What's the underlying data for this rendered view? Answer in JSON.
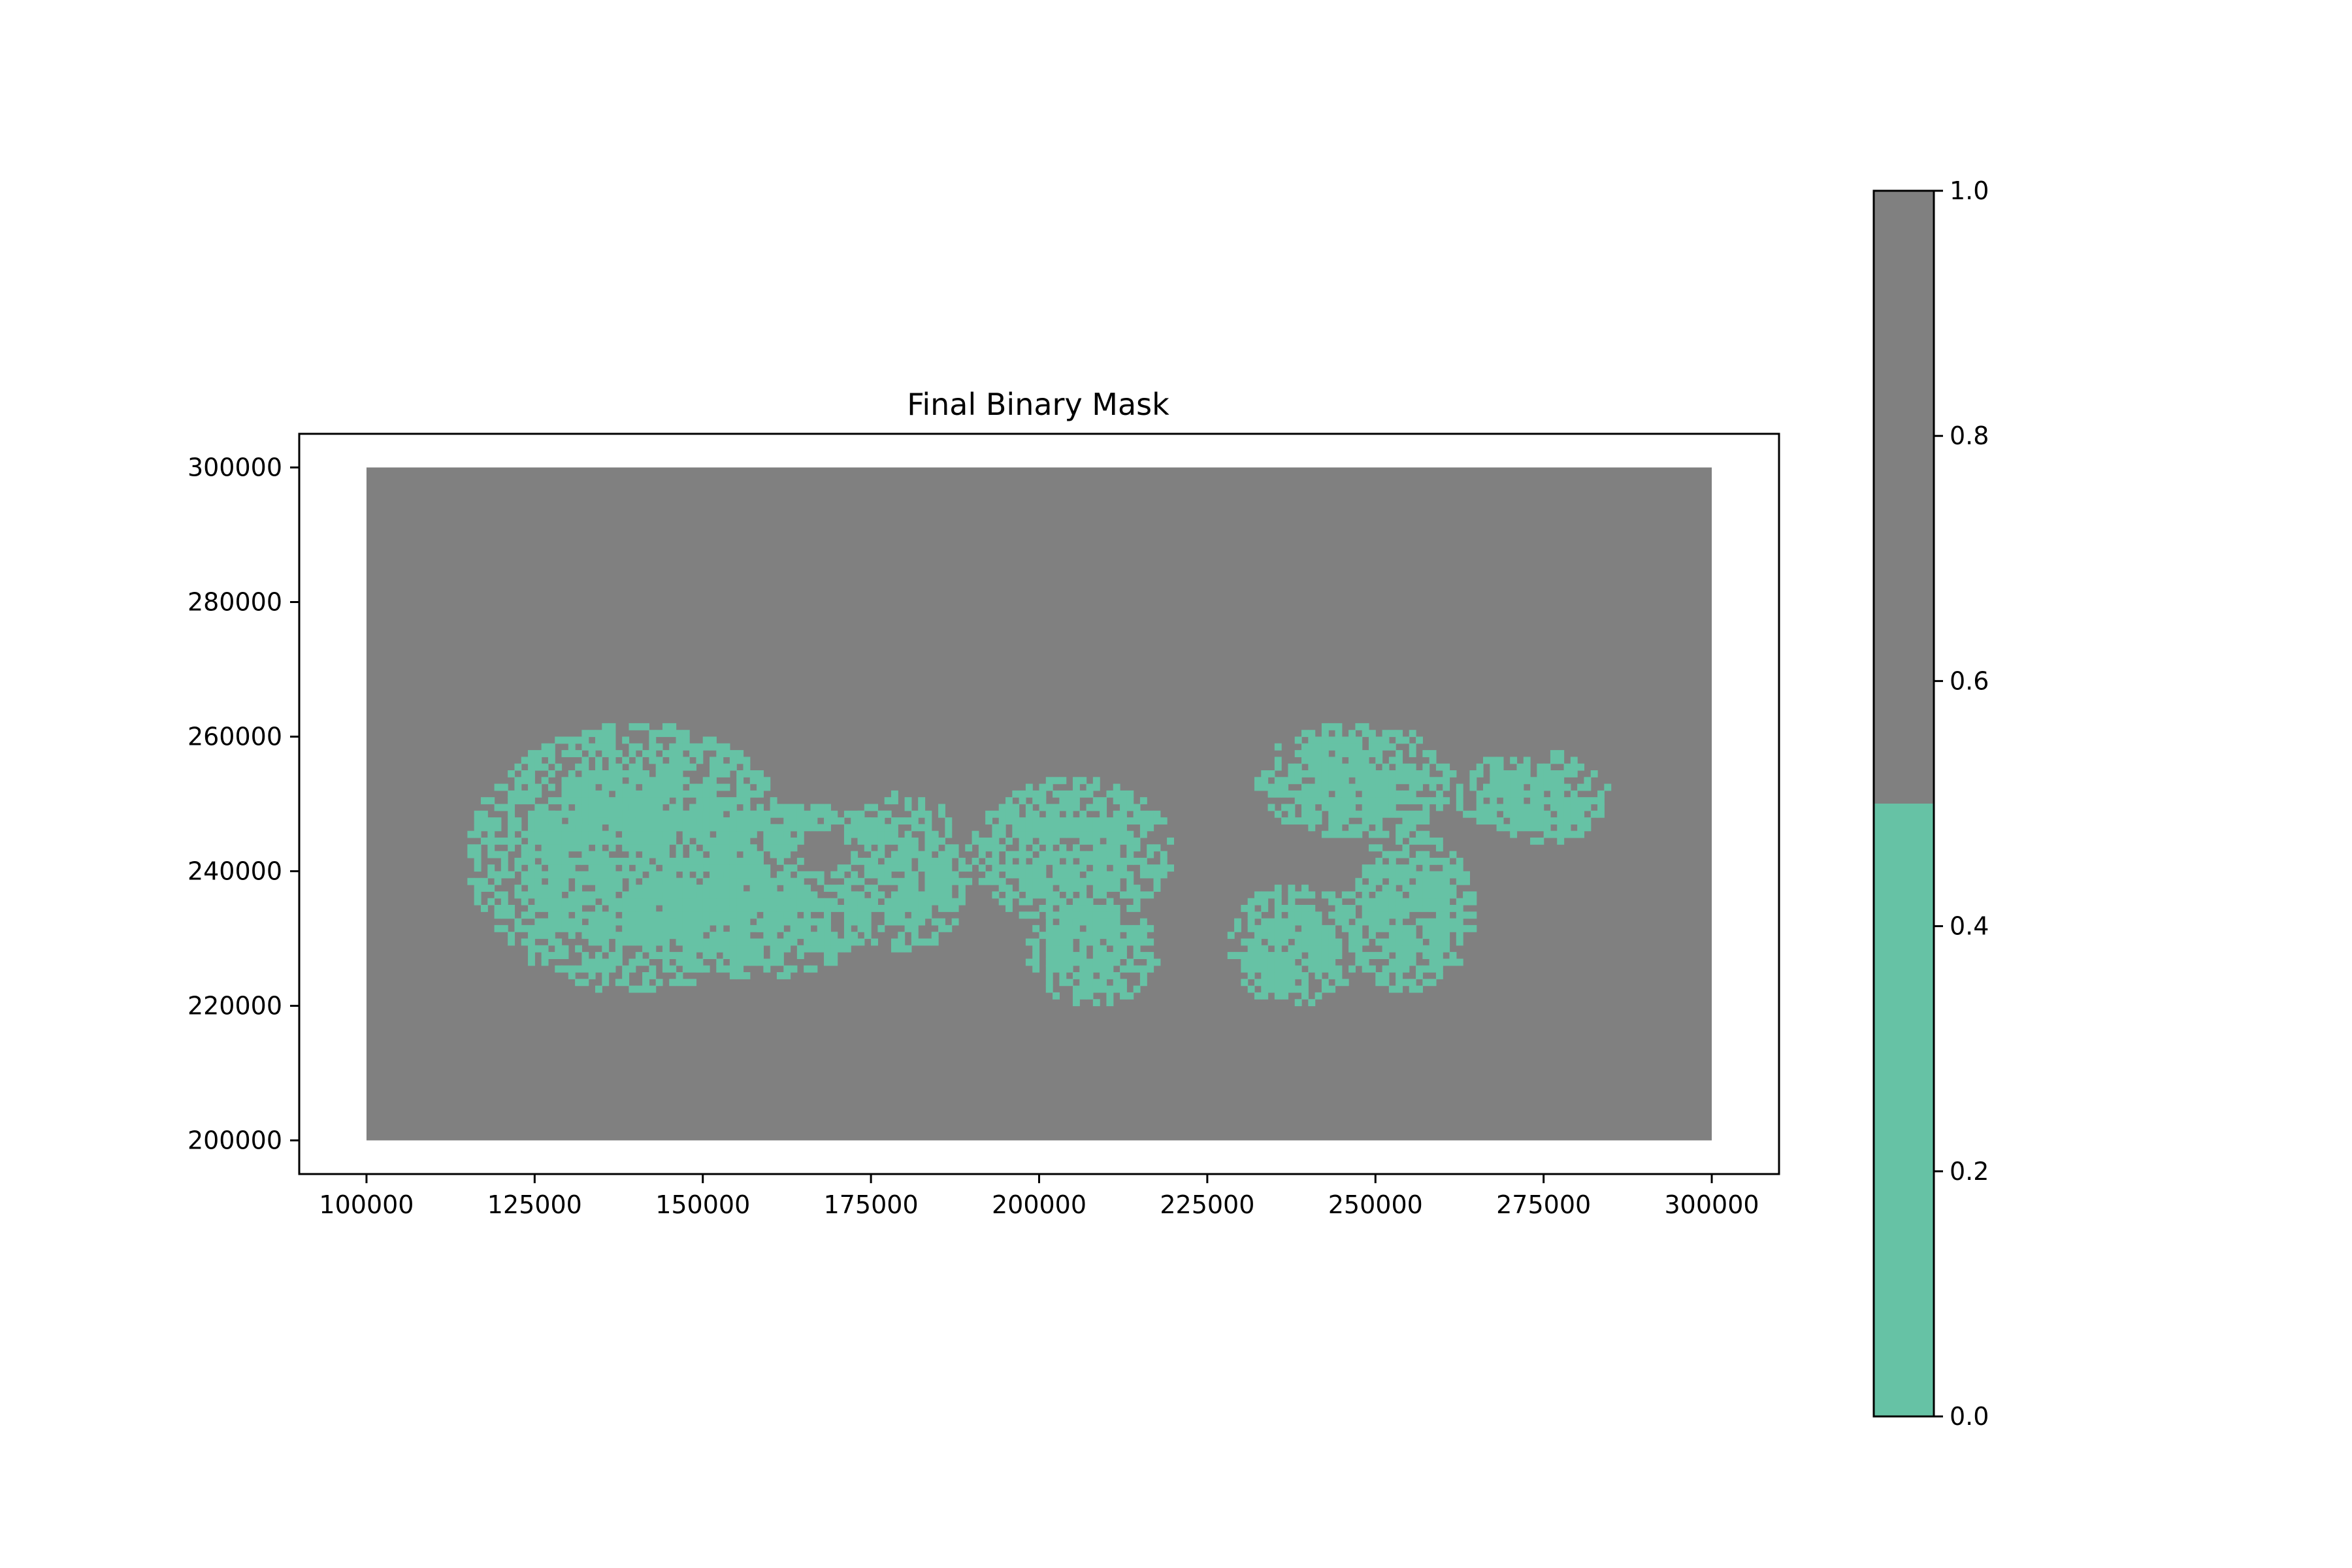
{
  "chart_data": {
    "type": "heatmap",
    "title": "Final Binary Mask",
    "xlabel": "",
    "ylabel": "",
    "xlim": [
      90000,
      310000
    ],
    "ylim": [
      195000,
      305000
    ],
    "extent": {
      "x": [
        100000,
        300000
      ],
      "y": [
        200000,
        300000
      ]
    },
    "xticks": [
      100000,
      125000,
      150000,
      175000,
      200000,
      225000,
      250000,
      275000,
      300000
    ],
    "xtick_labels": [
      "100000",
      "125000",
      "150000",
      "175000",
      "200000",
      "225000",
      "250000",
      "275000",
      "300000"
    ],
    "yticks": [
      200000,
      220000,
      240000,
      260000,
      280000,
      300000
    ],
    "ytick_labels": [
      "200000",
      "220000",
      "240000",
      "260000",
      "280000",
      "300000"
    ],
    "grid": false,
    "mask_background_value": 1,
    "mask_foreground_value": 0,
    "regions_value_0": [
      {
        "x": [
          115000,
          165000
        ],
        "y": [
          222000,
          262000
        ]
      },
      {
        "x": [
          125000,
          180000
        ],
        "y": [
          245000,
          250000
        ]
      },
      {
        "x": [
          170000,
          190000
        ],
        "y": [
          228000,
          252000
        ]
      },
      {
        "x": [
          190000,
          220000
        ],
        "y": [
          232000,
          254000
        ]
      },
      {
        "x": [
          198000,
          218000
        ],
        "y": [
          220000,
          236000
        ]
      },
      {
        "x": [
          228000,
          248000
        ],
        "y": [
          220000,
          238000
        ]
      },
      {
        "x": [
          232000,
          262000
        ],
        "y": [
          245000,
          262000
        ]
      },
      {
        "x": [
          245000,
          265000
        ],
        "y": [
          222000,
          246000
        ]
      },
      {
        "x": [
          262000,
          285000
        ],
        "y": [
          244000,
          258000
        ]
      },
      {
        "x": [
          140000,
          175000
        ],
        "y": [
          224000,
          242000
        ]
      }
    ],
    "colorbar": {
      "range": [
        0.0,
        1.0
      ],
      "ticks": [
        0.0,
        0.2,
        0.4,
        0.6,
        0.8,
        1.0
      ],
      "tick_labels": [
        "0.0",
        "0.2",
        "0.4",
        "0.6",
        "0.8",
        "1.0"
      ],
      "split": 0.5
    },
    "colors": {
      "value_0": "#66c2a5",
      "value_1": "#808080"
    }
  }
}
